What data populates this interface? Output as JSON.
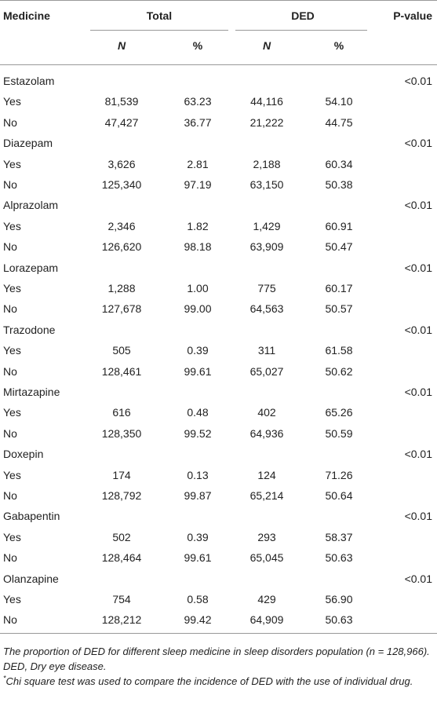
{
  "header": {
    "medicine": "Medicine",
    "total": "Total",
    "ded": "DED",
    "p_value": "P-value",
    "n": "N",
    "pct": "%"
  },
  "groups": [
    {
      "name": "Estazolam",
      "p_value": "<0.01",
      "rows": [
        {
          "label": "Yes",
          "total_n": "81,539",
          "total_pct": "63.23",
          "ded_n": "44,116",
          "ded_pct": "54.10"
        },
        {
          "label": "No",
          "total_n": "47,427",
          "total_pct": "36.77",
          "ded_n": "21,222",
          "ded_pct": "44.75"
        }
      ]
    },
    {
      "name": "Diazepam",
      "p_value": "<0.01",
      "rows": [
        {
          "label": "Yes",
          "total_n": "3,626",
          "total_pct": "2.81",
          "ded_n": "2,188",
          "ded_pct": "60.34"
        },
        {
          "label": "No",
          "total_n": "125,340",
          "total_pct": "97.19",
          "ded_n": "63,150",
          "ded_pct": "50.38"
        }
      ]
    },
    {
      "name": "Alprazolam",
      "p_value": "<0.01",
      "rows": [
        {
          "label": "Yes",
          "total_n": "2,346",
          "total_pct": "1.82",
          "ded_n": "1,429",
          "ded_pct": "60.91"
        },
        {
          "label": "No",
          "total_n": "126,620",
          "total_pct": "98.18",
          "ded_n": "63,909",
          "ded_pct": "50.47"
        }
      ]
    },
    {
      "name": "Lorazepam",
      "p_value": "<0.01",
      "rows": [
        {
          "label": "Yes",
          "total_n": "1,288",
          "total_pct": "1.00",
          "ded_n": "775",
          "ded_pct": "60.17"
        },
        {
          "label": "No",
          "total_n": "127,678",
          "total_pct": "99.00",
          "ded_n": "64,563",
          "ded_pct": "50.57"
        }
      ]
    },
    {
      "name": "Trazodone",
      "p_value": "<0.01",
      "rows": [
        {
          "label": "Yes",
          "total_n": "505",
          "total_pct": "0.39",
          "ded_n": "311",
          "ded_pct": "61.58"
        },
        {
          "label": "No",
          "total_n": "128,461",
          "total_pct": "99.61",
          "ded_n": "65,027",
          "ded_pct": "50.62"
        }
      ]
    },
    {
      "name": "Mirtazapine",
      "p_value": "<0.01",
      "rows": [
        {
          "label": "Yes",
          "total_n": "616",
          "total_pct": "0.48",
          "ded_n": "402",
          "ded_pct": "65.26"
        },
        {
          "label": "No",
          "total_n": "128,350",
          "total_pct": "99.52",
          "ded_n": "64,936",
          "ded_pct": "50.59"
        }
      ]
    },
    {
      "name": "Doxepin",
      "p_value": "<0.01",
      "rows": [
        {
          "label": "Yes",
          "total_n": "174",
          "total_pct": "0.13",
          "ded_n": "124",
          "ded_pct": "71.26"
        },
        {
          "label": "No",
          "total_n": "128,792",
          "total_pct": "99.87",
          "ded_n": "65,214",
          "ded_pct": "50.64"
        }
      ]
    },
    {
      "name": "Gabapentin",
      "p_value": "<0.01",
      "rows": [
        {
          "label": "Yes",
          "total_n": "502",
          "total_pct": "0.39",
          "ded_n": "293",
          "ded_pct": "58.37"
        },
        {
          "label": "No",
          "total_n": "128,464",
          "total_pct": "99.61",
          "ded_n": "65,045",
          "ded_pct": "50.63"
        }
      ]
    },
    {
      "name": "Olanzapine",
      "p_value": "<0.01",
      "rows": [
        {
          "label": "Yes",
          "total_n": "754",
          "total_pct": "0.58",
          "ded_n": "429",
          "ded_pct": "56.90"
        },
        {
          "label": "No",
          "total_n": "128,212",
          "total_pct": "99.42",
          "ded_n": "64,909",
          "ded_pct": "50.63"
        }
      ]
    }
  ],
  "footnotes": {
    "caption": "The proportion of DED for different sleep medicine in sleep disorders population (n = 128,966).",
    "abbreviation": "DED, Dry eye disease.",
    "marker": "*",
    "test": "Chi square test was used to compare the incidence of DED with the use of individual drug."
  }
}
